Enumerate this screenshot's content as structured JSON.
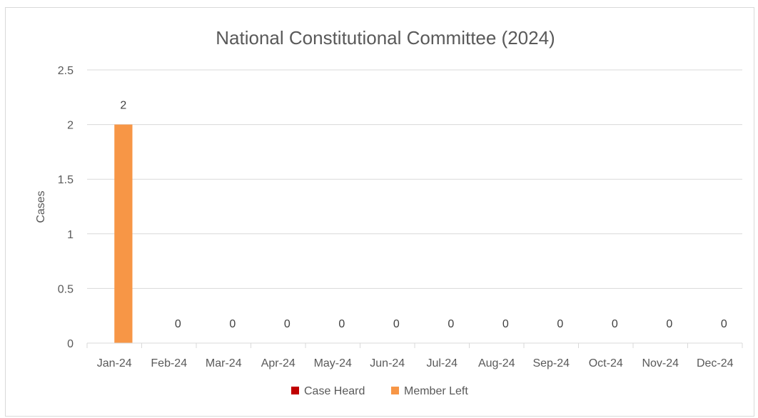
{
  "chart_data": {
    "type": "bar",
    "title": "National Constitutional Committee (2024)",
    "ylabel": "Cases",
    "xlabel": "",
    "ylim": [
      0,
      2.5
    ],
    "yticks": [
      "0",
      "0.5",
      "1",
      "1.5",
      "2",
      "2.5"
    ],
    "categories": [
      "Jan-24",
      "Feb-24",
      "Mar-24",
      "Apr-24",
      "May-24",
      "Jun-24",
      "Jul-24",
      "Aug-24",
      "Sep-24",
      "Oct-24",
      "Nov-24",
      "Dec-24"
    ],
    "series": [
      {
        "name": "Case Heard",
        "color": "#c00000",
        "values": [
          0,
          0,
          0,
          0,
          0,
          0,
          0,
          0,
          0,
          0,
          0,
          0
        ]
      },
      {
        "name": "Member Left",
        "color": "#f79646",
        "values": [
          2,
          0,
          0,
          0,
          0,
          0,
          0,
          0,
          0,
          0,
          0,
          0
        ]
      }
    ],
    "data_labels": [
      "2",
      "0",
      "0",
      "0",
      "0",
      "0",
      "0",
      "0",
      "0",
      "0",
      "0",
      "0"
    ],
    "gridlines": true,
    "legend_position": "bottom",
    "gridline_color": "#d9d9d9",
    "text_color": "#595959"
  }
}
